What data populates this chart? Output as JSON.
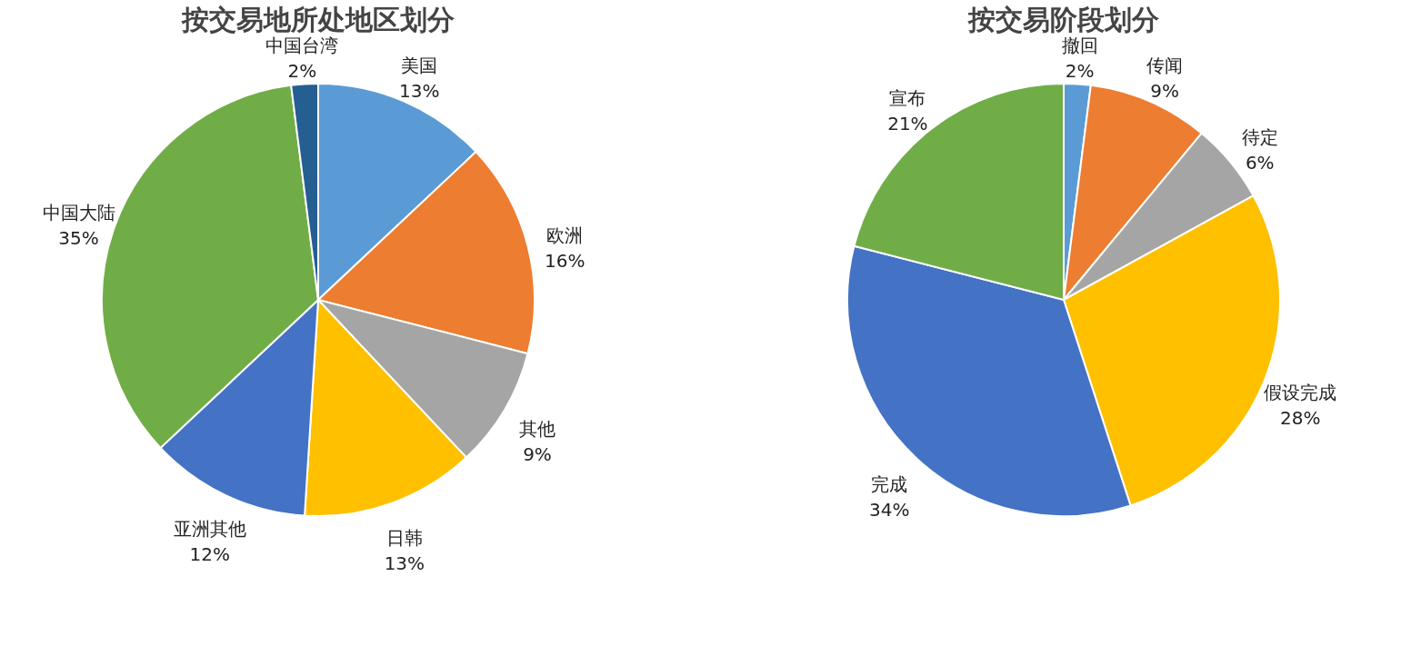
{
  "chart_data": [
    {
      "type": "pie",
      "title": "按交易地所处地区划分",
      "categories": [
        "美国",
        "欧洲",
        "其他",
        "日韩",
        "亚洲其他",
        "中国大陆",
        "中国台湾"
      ],
      "values": [
        13,
        16,
        9,
        13,
        12,
        35,
        2
      ],
      "value_labels": [
        "13%",
        "16%",
        "9%",
        "13%",
        "12%",
        "35%",
        "2%"
      ],
      "colors": [
        "#5b9bd5",
        "#ed7d31",
        "#a5a5a5",
        "#ffc000",
        "#4472c4",
        "#70ad47",
        "#255e91"
      ],
      "legend": false
    },
    {
      "type": "pie",
      "title": "按交易阶段划分",
      "categories": [
        "撤回",
        "传闻",
        "待定",
        "假设完成",
        "完成",
        "宣布"
      ],
      "values": [
        2,
        9,
        6,
        28,
        34,
        21
      ],
      "value_labels": [
        "2%",
        "9%",
        "6%",
        "28%",
        "34%",
        "21%"
      ],
      "colors": [
        "#5b9bd5",
        "#ed7d31",
        "#a5a5a5",
        "#ffc000",
        "#4472c4",
        "#70ad47"
      ],
      "legend": false
    }
  ]
}
